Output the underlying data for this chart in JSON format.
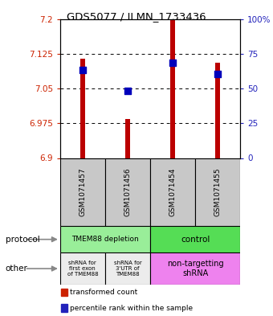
{
  "title": "GDS5077 / ILMN_1733436",
  "samples": [
    "GSM1071457",
    "GSM1071456",
    "GSM1071454",
    "GSM1071455"
  ],
  "red_values": [
    7.115,
    6.985,
    7.2,
    7.105
  ],
  "blue_values": [
    7.09,
    7.045,
    7.105,
    7.082
  ],
  "ymin": 6.9,
  "ymax": 7.2,
  "yticks_left": [
    6.9,
    6.975,
    7.05,
    7.125,
    7.2
  ],
  "yticks_right": [
    0,
    25,
    50,
    75,
    100
  ],
  "bar_width": 0.1,
  "blue_size": 35,
  "protocol_color_depletion": "#99EE99",
  "protocol_color_control": "#55DD55",
  "other_color_light": "#ECECEC",
  "other_color_pink": "#EE82EE",
  "bar_color": "#BB0000",
  "blue_color": "#0000BB",
  "left_tick_color": "#CC2200",
  "right_tick_color": "#2222BB",
  "sample_box_color": "#C8C8C8",
  "legend_red": "#CC2200",
  "legend_blue": "#2222BB"
}
